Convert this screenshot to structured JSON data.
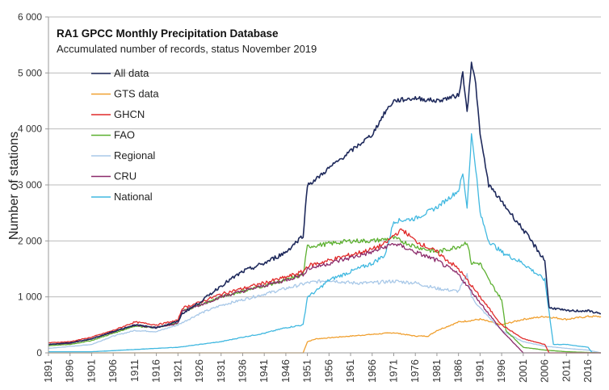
{
  "chart_data": {
    "type": "line",
    "title": "RA1 GPCC Monthly Precipitation Database",
    "subtitle": "Accumulated number of records, status November 2019",
    "xlabel": "",
    "ylabel": "Number of stations",
    "xlim": [
      1891,
      2019
    ],
    "ylim": [
      0,
      6000
    ],
    "yticks": [
      0,
      1000,
      2000,
      3000,
      4000,
      5000,
      6000
    ],
    "ytick_labels": [
      "0",
      "1 000",
      "2 000",
      "3 000",
      "4 000",
      "5 000",
      "6 000"
    ],
    "xticks": [
      1891,
      1896,
      1901,
      1906,
      1911,
      1916,
      1921,
      1926,
      1931,
      1936,
      1941,
      1946,
      1951,
      1956,
      1961,
      1966,
      1971,
      1976,
      1981,
      1986,
      1991,
      1996,
      2001,
      2006,
      2011,
      2016
    ],
    "grid": "horizontal",
    "legend_position": "top-left",
    "series": [
      {
        "name": "All data",
        "color": "#1f2a5c",
        "x": [
          1891,
          1896,
          1901,
          1906,
          1911,
          1916,
          1921,
          1922,
          1926,
          1931,
          1936,
          1941,
          1946,
          1950,
          1951,
          1953,
          1956,
          1961,
          1966,
          1969,
          1971,
          1976,
          1981,
          1986,
          1987,
          1988,
          1989,
          1990,
          1991,
          1993,
          1996,
          2001,
          2006,
          2007,
          2008,
          2011,
          2016,
          2019
        ],
        "y": [
          150,
          180,
          250,
          380,
          500,
          450,
          560,
          700,
          900,
          1200,
          1450,
          1600,
          1800,
          2100,
          3000,
          3100,
          3300,
          3600,
          3900,
          4300,
          4500,
          4550,
          4500,
          4600,
          5000,
          4300,
          5200,
          4800,
          3900,
          3000,
          2700,
          2200,
          1650,
          800,
          800,
          750,
          750,
          700
        ]
      },
      {
        "name": "GTS data",
        "color": "#f0a030",
        "x": [
          1891,
          1950,
          1951,
          1953,
          1961,
          1966,
          1971,
          1976,
          1979,
          1981,
          1986,
          1991,
          1996,
          2001,
          2006,
          2011,
          2016,
          2019
        ],
        "y": [
          0,
          0,
          200,
          250,
          300,
          330,
          360,
          300,
          300,
          400,
          550,
          600,
          500,
          600,
          650,
          600,
          650,
          650
        ]
      },
      {
        "name": "GHCN",
        "color": "#e02a2a",
        "x": [
          1891,
          1896,
          1901,
          1906,
          1911,
          1916,
          1921,
          1922,
          1926,
          1931,
          1936,
          1941,
          1946,
          1950,
          1951,
          1956,
          1961,
          1966,
          1969,
          1971,
          1973,
          1976,
          1981,
          1986,
          1991,
          1996,
          2001,
          2006,
          2007,
          2019
        ],
        "y": [
          180,
          200,
          280,
          400,
          550,
          500,
          580,
          800,
          900,
          1050,
          1150,
          1250,
          1350,
          1450,
          1550,
          1650,
          1750,
          1850,
          1950,
          2100,
          2200,
          2000,
          1800,
          1500,
          1000,
          500,
          250,
          150,
          0,
          0
        ]
      },
      {
        "name": "FAO",
        "color": "#5cb030",
        "x": [
          1891,
          1896,
          1901,
          1906,
          1911,
          1916,
          1921,
          1922,
          1926,
          1931,
          1936,
          1941,
          1946,
          1950,
          1951,
          1956,
          1961,
          1966,
          1971,
          1976,
          1981,
          1986,
          1988,
          1989,
          1991,
          1993,
          1996,
          1997,
          2001,
          2006,
          2011,
          2019
        ],
        "y": [
          130,
          150,
          220,
          350,
          480,
          450,
          530,
          750,
          850,
          1000,
          1100,
          1200,
          1300,
          1400,
          1900,
          1950,
          2000,
          2000,
          2050,
          1900,
          1800,
          1900,
          1980,
          1600,
          1600,
          1300,
          950,
          400,
          100,
          50,
          20,
          0
        ]
      },
      {
        "name": "Regional",
        "color": "#a8c8e8",
        "x": [
          1891,
          1901,
          1906,
          1911,
          1916,
          1921,
          1926,
          1931,
          1936,
          1941,
          1946,
          1951,
          1956,
          1961,
          1966,
          1971,
          1976,
          1981,
          1986,
          1988,
          1989,
          1991,
          1996,
          2001,
          2006,
          2011,
          2016,
          2019
        ],
        "y": [
          80,
          150,
          300,
          400,
          380,
          500,
          700,
          850,
          950,
          1050,
          1150,
          1250,
          1300,
          1250,
          1250,
          1280,
          1250,
          1150,
          1100,
          1400,
          1000,
          800,
          400,
          200,
          120,
          80,
          50,
          0
        ]
      },
      {
        "name": "CRU",
        "color": "#8b2a6a",
        "x": [
          1891,
          1896,
          1901,
          1906,
          1911,
          1916,
          1921,
          1922,
          1926,
          1931,
          1936,
          1941,
          1946,
          1950,
          1951,
          1956,
          1961,
          1966,
          1971,
          1973,
          1976,
          1981,
          1986,
          1991,
          1996,
          2001,
          2006,
          2019
        ],
        "y": [
          150,
          170,
          250,
          370,
          500,
          450,
          530,
          750,
          850,
          1000,
          1100,
          1200,
          1300,
          1400,
          1500,
          1600,
          1700,
          1800,
          1950,
          1900,
          1800,
          1650,
          1400,
          900,
          400,
          0,
          0,
          0
        ]
      },
      {
        "name": "National",
        "color": "#40b8e0",
        "x": [
          1891,
          1901,
          1906,
          1911,
          1916,
          1921,
          1926,
          1931,
          1936,
          1941,
          1946,
          1950,
          1951,
          1953,
          1956,
          1961,
          1966,
          1969,
          1971,
          1976,
          1981,
          1986,
          1987,
          1988,
          1989,
          1990,
          1991,
          1993,
          1996,
          2001,
          2006,
          2008,
          2011,
          2016,
          2017,
          2019
        ],
        "y": [
          20,
          20,
          40,
          60,
          80,
          100,
          150,
          200,
          280,
          350,
          450,
          500,
          1000,
          1100,
          1300,
          1450,
          1600,
          1750,
          2350,
          2400,
          2600,
          2900,
          3200,
          2600,
          3900,
          3300,
          2500,
          2000,
          1800,
          1600,
          1300,
          150,
          150,
          100,
          0,
          0
        ]
      }
    ]
  }
}
